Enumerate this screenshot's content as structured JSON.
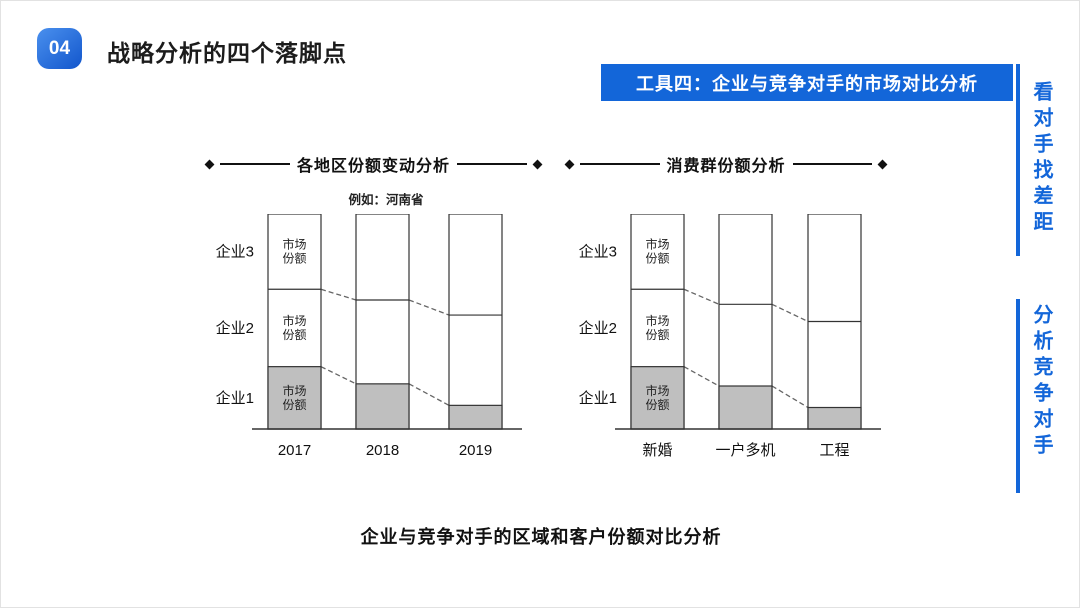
{
  "page": {
    "badge": "04",
    "title": "战略分析的四个落脚点",
    "banner": "工具四：企业与竞争对手的市场对比分析",
    "caption": "企业与竞争对手的区域和客户份额对比分析",
    "side_notes": [
      "看对手找差距",
      "分析竞争对手"
    ],
    "colors": {
      "accent": "#1366d9",
      "gray_fill": "#bfbfbf"
    }
  },
  "chart_data": [
    {
      "type": "bar",
      "stacked": true,
      "title": "各地区份额变动分析",
      "subtitle": "例如：河南省",
      "categories": [
        "2017",
        "2018",
        "2019"
      ],
      "row_labels": [
        "企业3",
        "企业2",
        "企业1"
      ],
      "cell_label": "市场份额",
      "ylim": [
        0,
        100
      ],
      "series": [
        {
          "name": "企业3",
          "values": [
            35,
            40,
            47
          ]
        },
        {
          "name": "企业2",
          "values": [
            36,
            39,
            42
          ]
        },
        {
          "name": "企业1",
          "values": [
            29,
            21,
            11
          ]
        }
      ]
    },
    {
      "type": "bar",
      "stacked": true,
      "title": "消费群份额分析",
      "subtitle": "",
      "categories": [
        "新婚",
        "一户多机",
        "工程"
      ],
      "row_labels": [
        "企业3",
        "企业2",
        "企业1"
      ],
      "cell_label": "市场份额",
      "ylim": [
        0,
        100
      ],
      "series": [
        {
          "name": "企业3",
          "values": [
            35,
            42,
            50
          ]
        },
        {
          "name": "企业2",
          "values": [
            36,
            38,
            40
          ]
        },
        {
          "name": "企业1",
          "values": [
            29,
            20,
            10
          ]
        }
      ]
    }
  ]
}
